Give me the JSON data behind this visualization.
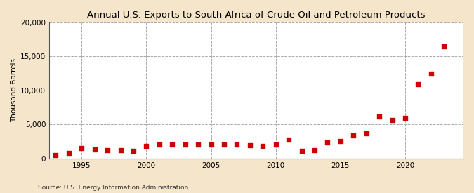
{
  "title": "Annual U.S. Exports to South Africa of Crude Oil and Petroleum Products",
  "ylabel": "Thousand Barrels",
  "source": "Source: U.S. Energy Information Administration",
  "fig_background_color": "#f5e6cb",
  "plot_background_color": "#ffffff",
  "marker_color": "#cc0000",
  "years": [
    1993,
    1994,
    1995,
    1996,
    1997,
    1998,
    1999,
    2000,
    2001,
    2002,
    2003,
    2004,
    2005,
    2006,
    2007,
    2008,
    2009,
    2010,
    2011,
    2012,
    2013,
    2014,
    2015,
    2016,
    2017,
    2018,
    2019,
    2020,
    2021,
    2022,
    2023
  ],
  "values": [
    500,
    800,
    1500,
    1300,
    1200,
    1200,
    1100,
    1800,
    2000,
    2100,
    2100,
    2100,
    2000,
    2100,
    2000,
    1900,
    1800,
    2100,
    2800,
    1100,
    1200,
    2400,
    2600,
    3400,
    3700,
    6200,
    5700,
    6000,
    10900,
    12500,
    16500
  ],
  "ylim": [
    0,
    20000
  ],
  "yticks": [
    0,
    5000,
    10000,
    15000,
    20000
  ],
  "xlim": [
    1992.5,
    2024.5
  ],
  "xticks": [
    1995,
    2000,
    2005,
    2010,
    2015,
    2020
  ],
  "title_fontsize": 9.5,
  "axis_fontsize": 7.5,
  "source_fontsize": 6.5
}
